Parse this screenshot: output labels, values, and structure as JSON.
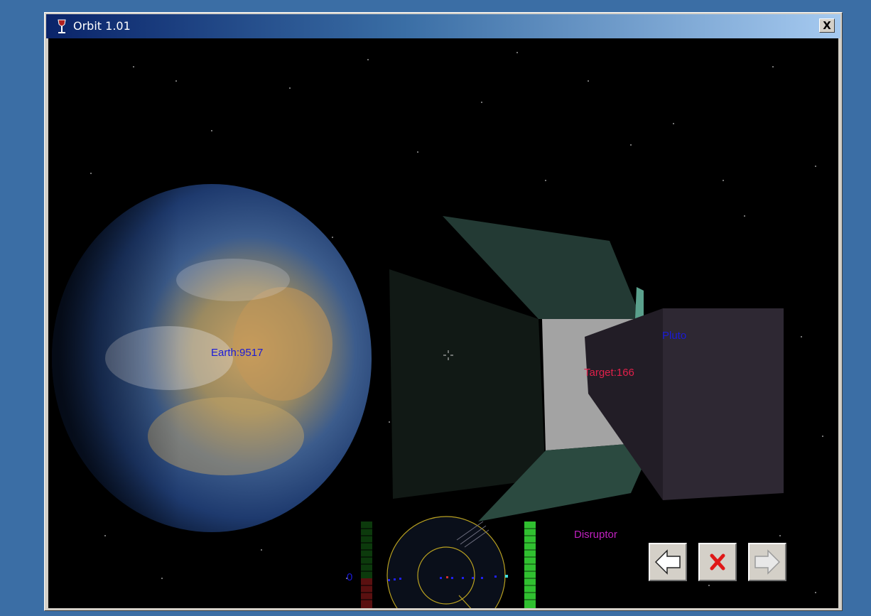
{
  "window": {
    "title": "Orbit 1.01",
    "close_label": "X"
  },
  "hud": {
    "earth_label": "Earth:9517",
    "target_label": "Target:166",
    "pluto_label": "Pluto",
    "weapon_label": "Disruptor",
    "radar_readout": "0"
  },
  "controls": {
    "prev_icon": "left-arrow-icon",
    "cancel_icon": "red-x-icon",
    "next_icon": "right-arrow-icon"
  },
  "colors": {
    "hud_blue": "#1a1ad8",
    "target_red": "#e0204a",
    "weapon_magenta": "#c020c0",
    "radar_ring": "#b8a020",
    "shield_green": "#30c030",
    "energy_red": "#a01818"
  }
}
